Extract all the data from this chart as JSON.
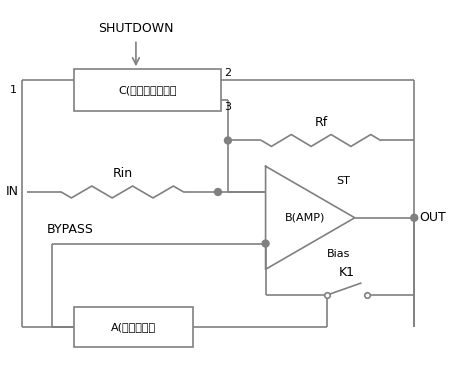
{
  "bg_color": "#ffffff",
  "line_color": "#808080",
  "text_color": "#000000",
  "box_C_label": "C(延迟控制电路）",
  "box_A_label": "A(偏置电路）",
  "shutdown_label": "SHUTDOWN",
  "in_label": "IN",
  "out_label": "OUT",
  "bypass_label": "BYPASS",
  "rin_label": "Rin",
  "rf_label": "Rf",
  "st_label": "ST",
  "bias_label": "Bias",
  "k1_label": "K1",
  "node1_label": "1",
  "node2_label": "2",
  "node3_label": "3"
}
